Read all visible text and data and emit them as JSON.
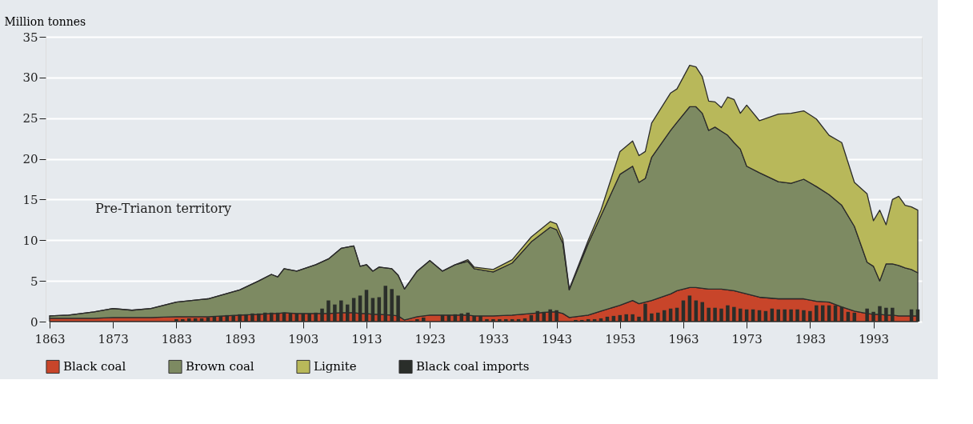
{
  "chart_data": {
    "type": "area",
    "ylabel": "Million tonnes",
    "stacked": true,
    "grid": "y",
    "legend": "bottom",
    "annotations": [
      "Pre-Trianon territory"
    ],
    "xlim": [
      1863,
      2000
    ],
    "xticks": [
      1863,
      1873,
      1883,
      1893,
      1903,
      1913,
      1923,
      1933,
      1943,
      1953,
      1963,
      1973,
      1983,
      1993
    ],
    "ylim": [
      0,
      35
    ],
    "yticks": [
      0,
      5,
      10,
      15,
      20,
      25,
      30,
      35
    ],
    "x": [
      1863,
      1866,
      1870,
      1873,
      1876,
      1879,
      1883,
      1888,
      1893,
      1896,
      1898,
      1899,
      1900,
      1902,
      1905,
      1907,
      1909,
      1911,
      1912,
      1913,
      1914,
      1915,
      1917,
      1918,
      1919,
      1921,
      1923,
      1925,
      1927,
      1929,
      1930,
      1933,
      1936,
      1939,
      1942,
      1943,
      1944,
      1945,
      1948,
      1950,
      1953,
      1955,
      1956,
      1957,
      1958,
      1961,
      1962,
      1964,
      1965,
      1966,
      1967,
      1968,
      1969,
      1970,
      1971,
      1972,
      1973,
      1975,
      1978,
      1980,
      1982,
      1984,
      1986,
      1988,
      1990,
      1992,
      1993,
      1994,
      1995,
      1996,
      1997,
      1998,
      1999,
      2000
    ],
    "series": [
      {
        "name": "Black coal",
        "color": "#c8452a",
        "values": [
          0.4,
          0.4,
          0.4,
          0.5,
          0.5,
          0.5,
          0.6,
          0.6,
          0.8,
          0.9,
          1.0,
          1.0,
          1.1,
          1.0,
          1.0,
          1.0,
          1.1,
          1.1,
          1.0,
          1.0,
          0.9,
          0.9,
          0.8,
          0.7,
          0.2,
          0.6,
          0.8,
          0.8,
          0.8,
          0.8,
          0.7,
          0.7,
          0.8,
          1.0,
          1.2,
          1.2,
          1.0,
          0.5,
          0.8,
          1.3,
          2.0,
          2.6,
          2.2,
          2.4,
          2.6,
          3.4,
          3.8,
          4.2,
          4.2,
          4.1,
          4.0,
          4.0,
          4.0,
          3.9,
          3.8,
          3.6,
          3.4,
          3.0,
          2.8,
          2.8,
          2.8,
          2.5,
          2.4,
          1.8,
          1.3,
          1.0,
          0.9,
          0.9,
          0.8,
          0.8,
          0.7,
          0.7,
          0.7,
          0.7
        ]
      },
      {
        "name": "Brown coal",
        "color": "#7d8a62",
        "values": [
          0.3,
          0.4,
          0.8,
          1.1,
          0.9,
          1.1,
          1.8,
          2.2,
          3.1,
          4.1,
          4.8,
          4.5,
          5.4,
          5.2,
          6.0,
          6.7,
          7.9,
          8.2,
          5.8,
          6.0,
          5.3,
          5.8,
          5.7,
          5.0,
          3.8,
          5.6,
          6.7,
          5.4,
          6.2,
          6.6,
          5.8,
          5.4,
          6.4,
          8.8,
          10.4,
          10.1,
          8.6,
          3.4,
          8.8,
          11.7,
          16.1,
          16.5,
          14.9,
          15.2,
          17.6,
          20.1,
          20.7,
          22.2,
          22.2,
          21.5,
          19.5,
          19.9,
          19.4,
          19.0,
          18.2,
          17.6,
          15.7,
          15.3,
          14.4,
          14.2,
          14.7,
          14.1,
          13.2,
          12.5,
          10.4,
          6.3,
          5.9,
          4.1,
          6.3,
          6.3,
          6.2,
          5.9,
          5.7,
          5.3
        ]
      },
      {
        "name": "Lignite",
        "color": "#b8b85a",
        "values": [
          0,
          0,
          0,
          0,
          0,
          0,
          0,
          0,
          0,
          0,
          0,
          0,
          0,
          0,
          0,
          0,
          0,
          0,
          0,
          0,
          0,
          0,
          0,
          0,
          0,
          0,
          0,
          0,
          0,
          0.2,
          0.2,
          0.3,
          0.4,
          0.6,
          0.7,
          0.7,
          0.5,
          0.1,
          0.4,
          0.7,
          2.8,
          3.1,
          3.3,
          3.3,
          4.2,
          4.6,
          4.1,
          5.1,
          4.9,
          4.5,
          3.6,
          3.1,
          2.9,
          4.7,
          5.3,
          4.4,
          7.5,
          6.4,
          8.3,
          8.6,
          8.4,
          8.3,
          7.3,
          7.7,
          5.4,
          8.4,
          5.6,
          8.7,
          4.8,
          7.9,
          8.5,
          7.7,
          7.7,
          7.7
        ]
      },
      {
        "name": "Black coal imports",
        "color": "#2a2e2a",
        "type": "bar",
        "x": [
          1883,
          1884,
          1885,
          1886,
          1887,
          1888,
          1889,
          1890,
          1891,
          1892,
          1893,
          1894,
          1895,
          1896,
          1897,
          1898,
          1899,
          1900,
          1901,
          1902,
          1903,
          1904,
          1905,
          1906,
          1907,
          1908,
          1909,
          1910,
          1911,
          1912,
          1913,
          1914,
          1915,
          1916,
          1917,
          1918,
          1919,
          1920,
          1921,
          1922,
          1923,
          1924,
          1925,
          1926,
          1927,
          1928,
          1929,
          1930,
          1931,
          1932,
          1933,
          1934,
          1935,
          1936,
          1937,
          1938,
          1939,
          1940,
          1941,
          1942,
          1943,
          1944,
          1945,
          1946,
          1947,
          1948,
          1949,
          1950,
          1951,
          1952,
          1953,
          1954,
          1955,
          1956,
          1957,
          1958,
          1959,
          1960,
          1961,
          1962,
          1963,
          1964,
          1965,
          1966,
          1967,
          1968,
          1969,
          1970,
          1971,
          1972,
          1973,
          1974,
          1975,
          1976,
          1977,
          1978,
          1979,
          1980,
          1981,
          1982,
          1983,
          1984,
          1985,
          1986,
          1987,
          1988,
          1989,
          1990,
          1991,
          1992,
          1993,
          1994,
          1995,
          1996,
          1997,
          1998,
          1999,
          2000
        ],
        "values": [
          0.3,
          0.3,
          0.4,
          0.4,
          0.4,
          0.5,
          0.6,
          0.7,
          0.8,
          0.8,
          0.9,
          0.9,
          1.0,
          1.0,
          1.1,
          1.1,
          1.1,
          1.1,
          1.0,
          1.0,
          1.0,
          1.0,
          1.1,
          1.6,
          2.6,
          2.1,
          2.6,
          2.1,
          2.9,
          3.2,
          3.9,
          2.9,
          3.0,
          4.4,
          4.0,
          3.2,
          null,
          0.1,
          0.3,
          0.5,
          null,
          null,
          0.8,
          0.8,
          0.9,
          1.0,
          1.1,
          0.7,
          0.7,
          0.3,
          0.3,
          0.3,
          0.3,
          0.3,
          0.3,
          0.4,
          0.8,
          1.3,
          1.2,
          1.5,
          1.4,
          null,
          null,
          0.2,
          0.2,
          0.3,
          0.3,
          0.4,
          0.6,
          0.7,
          0.8,
          0.9,
          0.9,
          0.6,
          2.2,
          1.0,
          1.1,
          1.4,
          1.6,
          1.7,
          2.6,
          3.2,
          2.6,
          2.4,
          1.7,
          1.7,
          1.6,
          2.0,
          1.8,
          1.6,
          1.5,
          1.5,
          1.4,
          1.3,
          1.6,
          1.5,
          1.5,
          1.5,
          1.5,
          1.4,
          1.3,
          2.0,
          2.0,
          2.0,
          2.0,
          1.8,
          1.2,
          1.1,
          null,
          1.6,
          1.2,
          1.9,
          1.7,
          1.7,
          null,
          null,
          1.5,
          1.5
        ]
      }
    ]
  }
}
